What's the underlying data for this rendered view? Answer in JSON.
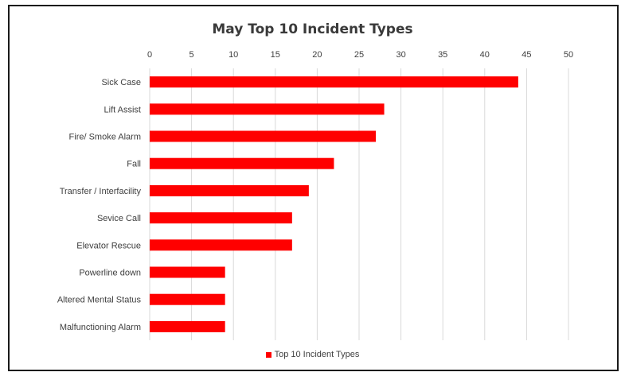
{
  "chart_data": {
    "type": "bar",
    "orientation": "horizontal",
    "title": "May Top 10 Incident Types",
    "categories": [
      "Sick Case",
      "Lift Assist",
      "Fire/ Smoke Alarm",
      "Fall",
      "Transfer / Interfacility",
      "Sevice Call",
      "Elevator Rescue",
      "Powerline down",
      "Altered Mental Status",
      "Malfunctioning Alarm"
    ],
    "series": [
      {
        "name": "Top 10 Incident Types",
        "values": [
          44,
          28,
          27,
          22,
          19,
          17,
          17,
          9,
          9,
          9
        ]
      }
    ],
    "xlim": [
      0,
      50
    ],
    "xticks": [
      "0",
      "5",
      "10",
      "15",
      "20",
      "25",
      "30",
      "35",
      "40",
      "45",
      "50"
    ],
    "xaxis_position": "top",
    "grid": true,
    "legend_position": "bottom",
    "colors": {
      "bar": "#ff0000",
      "grid": "#d9d9d9",
      "text": "#404040"
    }
  }
}
